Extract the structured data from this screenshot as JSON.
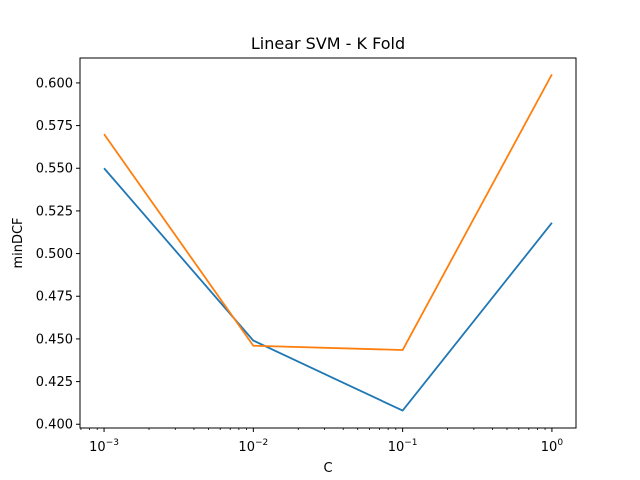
{
  "chart_data": {
    "type": "line",
    "title": "Linear SVM - K Fold",
    "xlabel": "C",
    "ylabel": "minDCF",
    "xscale": "log",
    "x": [
      0.001,
      0.01,
      0.1,
      1
    ],
    "xlim": [
      0.00069,
      1.45
    ],
    "ylim": [
      0.3978,
      0.6146
    ],
    "x_ticks": [
      {
        "value": 0.001,
        "base": "10",
        "exp": "−3"
      },
      {
        "value": 0.01,
        "base": "10",
        "exp": "−2"
      },
      {
        "value": 0.1,
        "base": "10",
        "exp": "−1"
      },
      {
        "value": 1,
        "base": "10",
        "exp": "0"
      }
    ],
    "y_ticks": [
      0.4,
      0.425,
      0.45,
      0.475,
      0.5,
      0.525,
      0.55,
      0.575,
      0.6
    ],
    "y_tick_labels": [
      "0.400",
      "0.425",
      "0.450",
      "0.475",
      "0.500",
      "0.525",
      "0.550",
      "0.575",
      "0.600"
    ],
    "grid": false,
    "legend": "none",
    "series": [
      {
        "color": "#1f77b4",
        "values": [
          0.55,
          0.449,
          0.408,
          0.518
        ]
      },
      {
        "color": "#ff7f0e",
        "values": [
          0.57,
          0.446,
          0.4435,
          0.605
        ]
      }
    ]
  }
}
